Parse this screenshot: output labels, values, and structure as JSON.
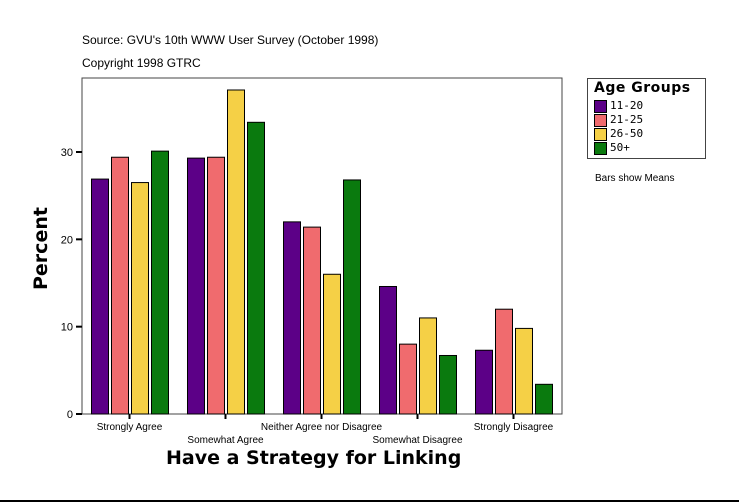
{
  "chart_data": {
    "type": "bar",
    "source_line": "Source: GVU's 10th WWW User Survey (October 1998)",
    "copyright_line": "Copyright 1998 GTRC",
    "xlabel": "Have a Strategy for Linking",
    "ylabel": "Percent",
    "ylim": [
      0,
      38.5
    ],
    "yticks": [
      0,
      10,
      20,
      30
    ],
    "categories": [
      "Strongly Agree",
      "Somewhat Agree",
      "Neither Agree nor Disagree",
      "Somewhat Disagree",
      "Strongly Disagree"
    ],
    "legend_title": "Age Groups",
    "legend_position": "right",
    "note": "Bars show Means",
    "grid": false,
    "series": [
      {
        "name": "11-20",
        "color": "#5c0087",
        "values": [
          26.9,
          29.3,
          22.0,
          14.6,
          7.3
        ]
      },
      {
        "name": "21-25",
        "color": "#f06b6e",
        "values": [
          29.4,
          29.4,
          21.4,
          8.0,
          12.0
        ]
      },
      {
        "name": "26-50",
        "color": "#f5d046",
        "values": [
          26.5,
          37.1,
          16.0,
          11.0,
          9.8
        ]
      },
      {
        "name": "50+",
        "color": "#0a7a0e",
        "values": [
          30.1,
          33.4,
          26.8,
          6.7,
          3.4
        ]
      }
    ]
  }
}
